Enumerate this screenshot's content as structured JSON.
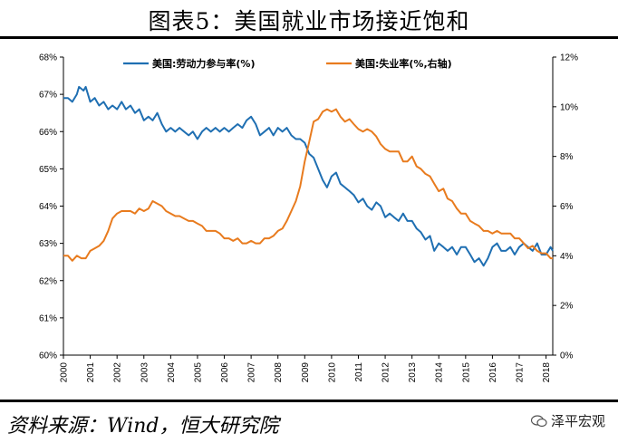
{
  "header": {
    "title": "图表5：美国就业市场接近饱和"
  },
  "footer": {
    "source": "资料来源：Wind，恒大研究院",
    "watermark": "泽平宏观"
  },
  "colors": {
    "participation": "#1f6fb2",
    "unemployment": "#e87b1e",
    "axis": "#000000"
  },
  "chart_data": {
    "type": "line",
    "x_ticks": [
      "2000",
      "2001",
      "2002",
      "2003",
      "2004",
      "2005",
      "2006",
      "2007",
      "2008",
      "2009",
      "2010",
      "2011",
      "2012",
      "2013",
      "2014",
      "2015",
      "2016",
      "2017",
      "2018"
    ],
    "x_range": [
      2000.0,
      2018.25
    ],
    "y_left": {
      "ticks": [
        "60%",
        "61%",
        "62%",
        "63%",
        "64%",
        "65%",
        "66%",
        "67%",
        "68%"
      ],
      "range": [
        60,
        68
      ]
    },
    "y_right": {
      "ticks": [
        "0%",
        "2%",
        "4%",
        "6%",
        "8%",
        "10%",
        "12%"
      ],
      "range": [
        0,
        12
      ]
    },
    "grid": false,
    "legend_position": "top",
    "series": [
      {
        "name": "美国:劳动力参与率(%)",
        "axis": "left",
        "color": "#1f6fb2",
        "points": [
          [
            2000.0,
            66.9
          ],
          [
            2000.17,
            66.9
          ],
          [
            2000.33,
            66.8
          ],
          [
            2000.5,
            67.0
          ],
          [
            2000.58,
            67.2
          ],
          [
            2000.75,
            67.1
          ],
          [
            2000.83,
            67.2
          ],
          [
            2001.0,
            66.8
          ],
          [
            2001.17,
            66.9
          ],
          [
            2001.33,
            66.7
          ],
          [
            2001.5,
            66.8
          ],
          [
            2001.67,
            66.6
          ],
          [
            2001.83,
            66.7
          ],
          [
            2002.0,
            66.6
          ],
          [
            2002.17,
            66.8
          ],
          [
            2002.33,
            66.6
          ],
          [
            2002.5,
            66.7
          ],
          [
            2002.67,
            66.5
          ],
          [
            2002.83,
            66.6
          ],
          [
            2003.0,
            66.3
          ],
          [
            2003.17,
            66.4
          ],
          [
            2003.33,
            66.3
          ],
          [
            2003.5,
            66.5
          ],
          [
            2003.67,
            66.2
          ],
          [
            2003.83,
            66.0
          ],
          [
            2004.0,
            66.1
          ],
          [
            2004.17,
            66.0
          ],
          [
            2004.33,
            66.1
          ],
          [
            2004.5,
            66.0
          ],
          [
            2004.67,
            65.9
          ],
          [
            2004.83,
            66.0
          ],
          [
            2005.0,
            65.8
          ],
          [
            2005.17,
            66.0
          ],
          [
            2005.33,
            66.1
          ],
          [
            2005.5,
            66.0
          ],
          [
            2005.67,
            66.1
          ],
          [
            2005.83,
            66.0
          ],
          [
            2006.0,
            66.1
          ],
          [
            2006.17,
            66.0
          ],
          [
            2006.33,
            66.1
          ],
          [
            2006.5,
            66.2
          ],
          [
            2006.67,
            66.1
          ],
          [
            2006.83,
            66.3
          ],
          [
            2007.0,
            66.4
          ],
          [
            2007.17,
            66.2
          ],
          [
            2007.33,
            65.9
          ],
          [
            2007.5,
            66.0
          ],
          [
            2007.67,
            66.1
          ],
          [
            2007.83,
            65.9
          ],
          [
            2008.0,
            66.1
          ],
          [
            2008.17,
            66.0
          ],
          [
            2008.33,
            66.1
          ],
          [
            2008.5,
            65.9
          ],
          [
            2008.67,
            65.8
          ],
          [
            2008.83,
            65.8
          ],
          [
            2009.0,
            65.7
          ],
          [
            2009.17,
            65.4
          ],
          [
            2009.33,
            65.3
          ],
          [
            2009.5,
            65.0
          ],
          [
            2009.67,
            64.7
          ],
          [
            2009.83,
            64.5
          ],
          [
            2010.0,
            64.8
          ],
          [
            2010.17,
            64.9
          ],
          [
            2010.33,
            64.6
          ],
          [
            2010.5,
            64.5
          ],
          [
            2010.67,
            64.4
          ],
          [
            2010.83,
            64.3
          ],
          [
            2011.0,
            64.1
          ],
          [
            2011.17,
            64.2
          ],
          [
            2011.33,
            64.0
          ],
          [
            2011.5,
            63.9
          ],
          [
            2011.67,
            64.1
          ],
          [
            2011.83,
            64.0
          ],
          [
            2012.0,
            63.7
          ],
          [
            2012.17,
            63.8
          ],
          [
            2012.33,
            63.7
          ],
          [
            2012.5,
            63.6
          ],
          [
            2012.67,
            63.8
          ],
          [
            2012.83,
            63.6
          ],
          [
            2013.0,
            63.6
          ],
          [
            2013.17,
            63.4
          ],
          [
            2013.33,
            63.3
          ],
          [
            2013.5,
            63.1
          ],
          [
            2013.67,
            63.2
          ],
          [
            2013.83,
            62.8
          ],
          [
            2014.0,
            63.0
          ],
          [
            2014.17,
            62.9
          ],
          [
            2014.33,
            62.8
          ],
          [
            2014.5,
            62.9
          ],
          [
            2014.67,
            62.7
          ],
          [
            2014.83,
            62.9
          ],
          [
            2015.0,
            62.9
          ],
          [
            2015.17,
            62.7
          ],
          [
            2015.33,
            62.5
          ],
          [
            2015.5,
            62.6
          ],
          [
            2015.67,
            62.4
          ],
          [
            2015.83,
            62.6
          ],
          [
            2016.0,
            62.9
          ],
          [
            2016.17,
            63.0
          ],
          [
            2016.33,
            62.8
          ],
          [
            2016.5,
            62.8
          ],
          [
            2016.67,
            62.9
          ],
          [
            2016.83,
            62.7
          ],
          [
            2017.0,
            62.9
          ],
          [
            2017.17,
            63.0
          ],
          [
            2017.33,
            62.9
          ],
          [
            2017.5,
            62.8
          ],
          [
            2017.67,
            63.0
          ],
          [
            2017.83,
            62.7
          ],
          [
            2018.0,
            62.7
          ],
          [
            2018.17,
            62.9
          ],
          [
            2018.25,
            62.8
          ]
        ]
      },
      {
        "name": "美国:失业率(%,右轴)",
        "axis": "right",
        "color": "#e87b1e",
        "points": [
          [
            2000.0,
            4.0
          ],
          [
            2000.17,
            4.0
          ],
          [
            2000.33,
            3.8
          ],
          [
            2000.5,
            4.0
          ],
          [
            2000.67,
            3.9
          ],
          [
            2000.83,
            3.9
          ],
          [
            2001.0,
            4.2
          ],
          [
            2001.17,
            4.3
          ],
          [
            2001.33,
            4.4
          ],
          [
            2001.5,
            4.6
          ],
          [
            2001.67,
            5.0
          ],
          [
            2001.83,
            5.5
          ],
          [
            2002.0,
            5.7
          ],
          [
            2002.17,
            5.8
          ],
          [
            2002.33,
            5.8
          ],
          [
            2002.5,
            5.8
          ],
          [
            2002.67,
            5.7
          ],
          [
            2002.83,
            5.9
          ],
          [
            2003.0,
            5.8
          ],
          [
            2003.17,
            5.9
          ],
          [
            2003.33,
            6.2
          ],
          [
            2003.5,
            6.1
          ],
          [
            2003.67,
            6.0
          ],
          [
            2003.83,
            5.8
          ],
          [
            2004.0,
            5.7
          ],
          [
            2004.17,
            5.6
          ],
          [
            2004.33,
            5.6
          ],
          [
            2004.5,
            5.5
          ],
          [
            2004.67,
            5.4
          ],
          [
            2004.83,
            5.4
          ],
          [
            2005.0,
            5.3
          ],
          [
            2005.17,
            5.2
          ],
          [
            2005.33,
            5.0
          ],
          [
            2005.5,
            5.0
          ],
          [
            2005.67,
            5.0
          ],
          [
            2005.83,
            4.9
          ],
          [
            2006.0,
            4.7
          ],
          [
            2006.17,
            4.7
          ],
          [
            2006.33,
            4.6
          ],
          [
            2006.5,
            4.7
          ],
          [
            2006.67,
            4.5
          ],
          [
            2006.83,
            4.5
          ],
          [
            2007.0,
            4.6
          ],
          [
            2007.17,
            4.5
          ],
          [
            2007.33,
            4.5
          ],
          [
            2007.5,
            4.7
          ],
          [
            2007.67,
            4.7
          ],
          [
            2007.83,
            4.8
          ],
          [
            2008.0,
            5.0
          ],
          [
            2008.17,
            5.1
          ],
          [
            2008.33,
            5.4
          ],
          [
            2008.5,
            5.8
          ],
          [
            2008.67,
            6.2
          ],
          [
            2008.83,
            6.8
          ],
          [
            2009.0,
            7.8
          ],
          [
            2009.17,
            8.6
          ],
          [
            2009.33,
            9.4
          ],
          [
            2009.5,
            9.5
          ],
          [
            2009.67,
            9.8
          ],
          [
            2009.83,
            9.9
          ],
          [
            2010.0,
            9.8
          ],
          [
            2010.17,
            9.9
          ],
          [
            2010.33,
            9.6
          ],
          [
            2010.5,
            9.4
          ],
          [
            2010.67,
            9.5
          ],
          [
            2010.83,
            9.3
          ],
          [
            2011.0,
            9.1
          ],
          [
            2011.17,
            9.0
          ],
          [
            2011.33,
            9.1
          ],
          [
            2011.5,
            9.0
          ],
          [
            2011.67,
            8.8
          ],
          [
            2011.83,
            8.5
          ],
          [
            2012.0,
            8.3
          ],
          [
            2012.17,
            8.2
          ],
          [
            2012.33,
            8.2
          ],
          [
            2012.5,
            8.2
          ],
          [
            2012.67,
            7.8
          ],
          [
            2012.83,
            7.8
          ],
          [
            2013.0,
            8.0
          ],
          [
            2013.17,
            7.6
          ],
          [
            2013.33,
            7.5
          ],
          [
            2013.5,
            7.3
          ],
          [
            2013.67,
            7.2
          ],
          [
            2013.83,
            6.9
          ],
          [
            2014.0,
            6.6
          ],
          [
            2014.17,
            6.7
          ],
          [
            2014.33,
            6.3
          ],
          [
            2014.5,
            6.2
          ],
          [
            2014.67,
            5.9
          ],
          [
            2014.83,
            5.7
          ],
          [
            2015.0,
            5.7
          ],
          [
            2015.17,
            5.4
          ],
          [
            2015.33,
            5.3
          ],
          [
            2015.5,
            5.2
          ],
          [
            2015.67,
            5.0
          ],
          [
            2015.83,
            5.0
          ],
          [
            2016.0,
            4.9
          ],
          [
            2016.17,
            5.0
          ],
          [
            2016.33,
            4.9
          ],
          [
            2016.5,
            4.9
          ],
          [
            2016.67,
            4.9
          ],
          [
            2016.83,
            4.7
          ],
          [
            2017.0,
            4.7
          ],
          [
            2017.17,
            4.5
          ],
          [
            2017.33,
            4.3
          ],
          [
            2017.5,
            4.4
          ],
          [
            2017.67,
            4.2
          ],
          [
            2017.83,
            4.1
          ],
          [
            2018.0,
            4.1
          ],
          [
            2018.17,
            3.9
          ],
          [
            2018.25,
            3.9
          ]
        ]
      }
    ]
  }
}
